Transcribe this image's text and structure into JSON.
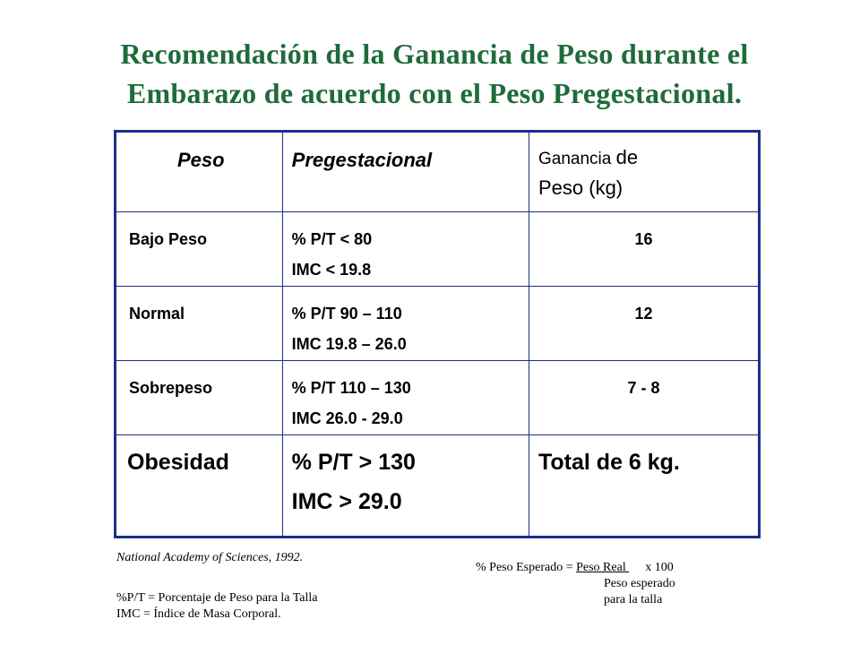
{
  "title": {
    "line1": "Recomendación  de la Ganancia de Peso durante el",
    "line2": "Embarazo  de acuerdo con el Peso Pregestacional."
  },
  "table": {
    "headers": {
      "col1": "Peso",
      "col2": "Pregestacional",
      "col3_part1": "Ganancia ",
      "col3_part2": "de",
      "col3_part3": "Peso (kg)"
    },
    "rows": [
      {
        "category": "Bajo Peso",
        "range_pt": "% P/T   < 80",
        "range_imc": "IMC   < 19.8",
        "gain": "16"
      },
      {
        "category": "Normal",
        "range_pt": "% P/T  90 – 110",
        "range_imc": "IMC 19.8 – 26.0",
        "gain": "12"
      },
      {
        "category": "Sobrepeso",
        "range_pt": "% P/T  110 – 130",
        "range_imc": "IMC 26.0  -  29.0",
        "gain": "7 - 8"
      },
      {
        "category": "Obesidad",
        "range_pt": "% P/T  > 130",
        "range_imc": "IMC > 29.0",
        "gain": "Total de 6 kg."
      }
    ]
  },
  "footer": {
    "source": "National Academy of Sciences, 1992.",
    "abbr_pt": "%P/T = Porcentaje de Peso para la Talla",
    "abbr_imc": "IMC = Índice de Masa Corporal.",
    "formula_lhs": "% Peso Esperado = ",
    "formula_num": "Peso Real   ",
    "formula_mult": "x 100",
    "formula_den1": "Peso esperado",
    "formula_den2": "para la talla"
  },
  "colors": {
    "title": "#1f6b3a",
    "table_border": "#1b2f8a"
  }
}
